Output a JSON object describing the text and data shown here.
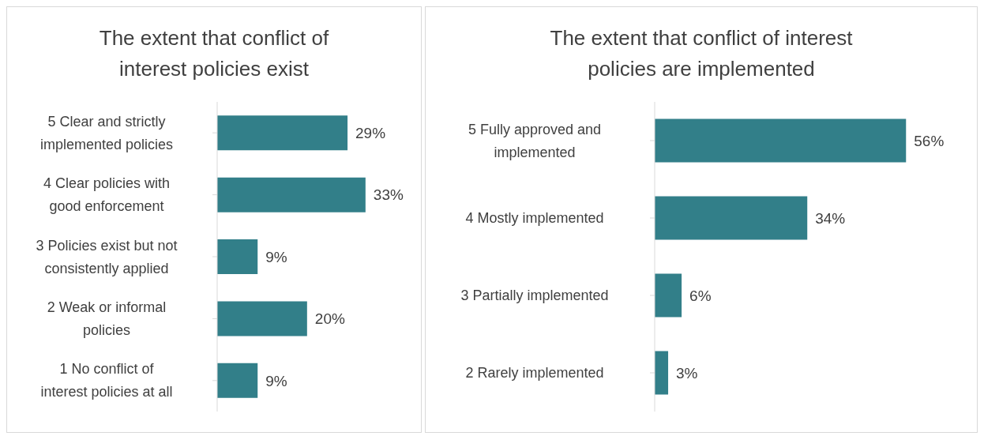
{
  "chart_data": [
    {
      "type": "bar",
      "orientation": "horizontal",
      "title": "The extent that conflict of interest policies exist",
      "categories": [
        "5 Clear and strictly implemented policies",
        "4 Clear policies with good enforcement",
        "3 Policies exist but not consistently applied",
        "2 Weak or informal policies",
        "1 No conflict of interest policies at all"
      ],
      "values": [
        29,
        33,
        9,
        20,
        9
      ],
      "value_labels": [
        "29%",
        "33%",
        "9%",
        "20%",
        "9%"
      ],
      "color": "#327f89"
    },
    {
      "type": "bar",
      "orientation": "horizontal",
      "title": "The extent that conflict of interest policies are implemented",
      "categories": [
        "5 Fully approved and implemented",
        "4 Mostly implemented",
        "3 Partially implemented",
        "2 Rarely implemented"
      ],
      "values": [
        56,
        34,
        6,
        3
      ],
      "value_labels": [
        "56%",
        "34%",
        "6%",
        "3%"
      ],
      "color": "#327f89"
    }
  ]
}
